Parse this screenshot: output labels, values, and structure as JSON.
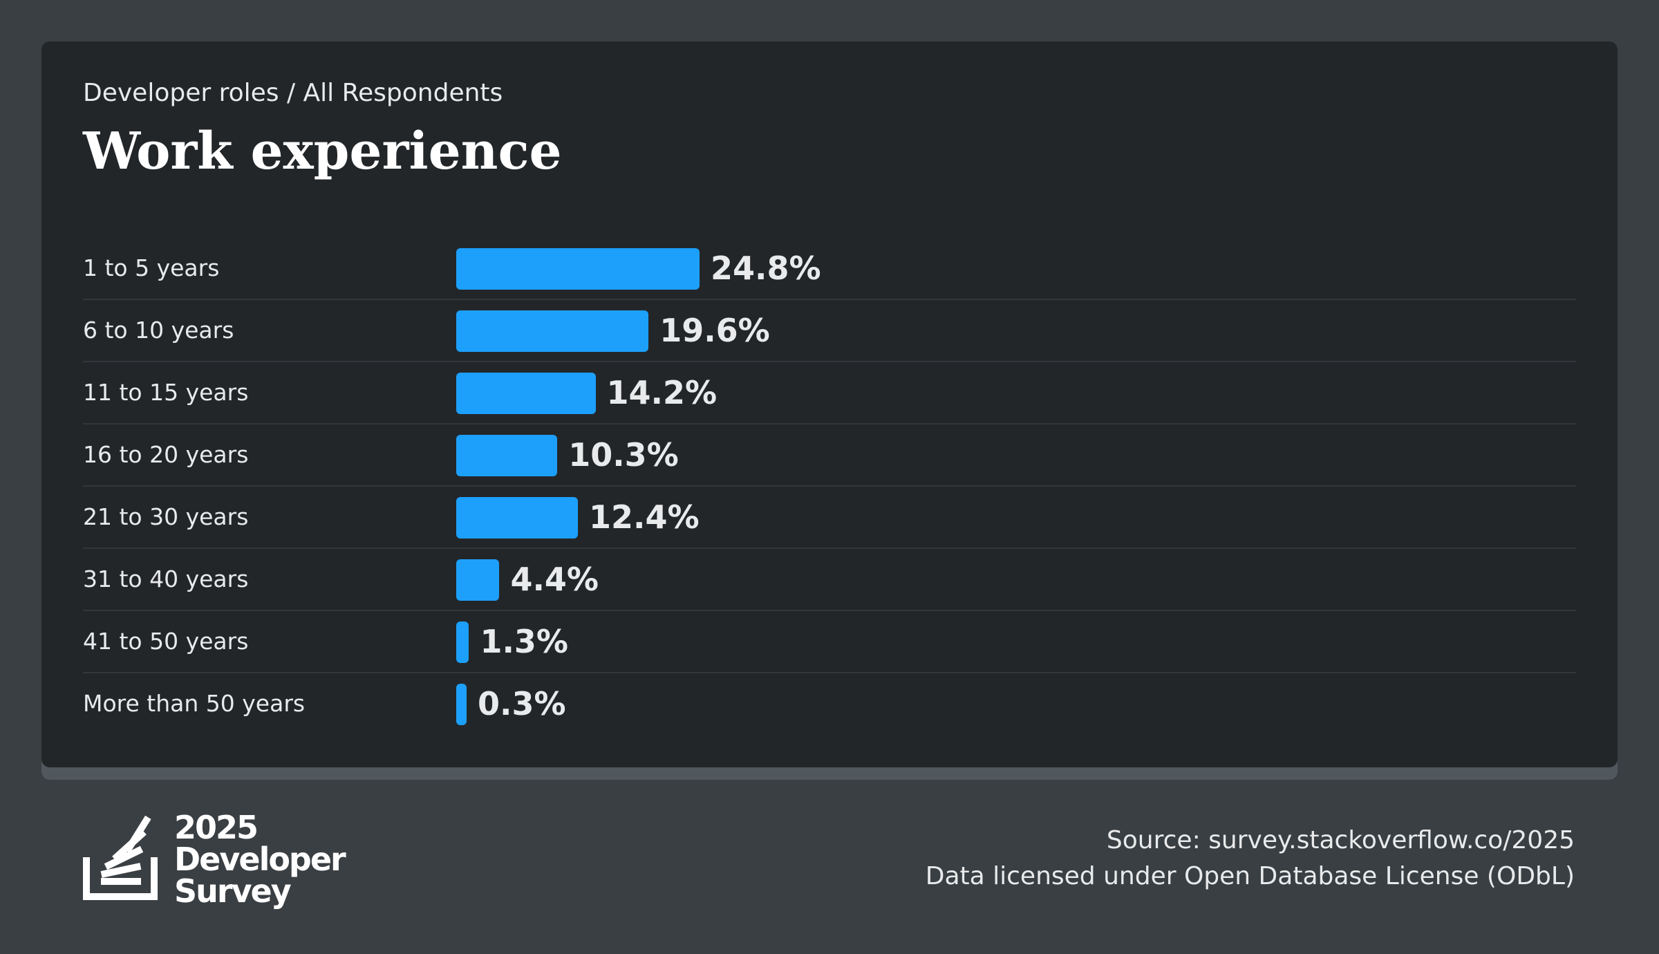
{
  "breadcrumb": "Developer roles / All Respondents",
  "title": "Work experience",
  "colors": {
    "bar": "#1ca0fc",
    "card": "#232629",
    "background": "#3a3f43"
  },
  "chart_data": {
    "type": "bar",
    "orientation": "horizontal",
    "title": "Work experience",
    "categories": [
      "1 to 5 years",
      "6 to 10 years",
      "11 to 15 years",
      "16 to 20 years",
      "21 to 30 years",
      "31 to 40 years",
      "41 to 50 years",
      "More than 50 years"
    ],
    "values": [
      24.8,
      19.6,
      14.2,
      10.3,
      12.4,
      4.4,
      1.3,
      0.3
    ],
    "value_labels": [
      "24.8%",
      "19.6%",
      "14.2%",
      "10.3%",
      "12.4%",
      "4.4%",
      "1.3%",
      "0.3%"
    ],
    "grid": false,
    "legend": "none"
  },
  "logo": {
    "icon": "stackoverflow-logo-icon",
    "line1": "2025",
    "line2": "Developer",
    "line3": "Survey"
  },
  "footer": {
    "source": "Source: survey.stackoverflow.co/2025",
    "license": "Data licensed under Open Database License (ODbL)"
  }
}
